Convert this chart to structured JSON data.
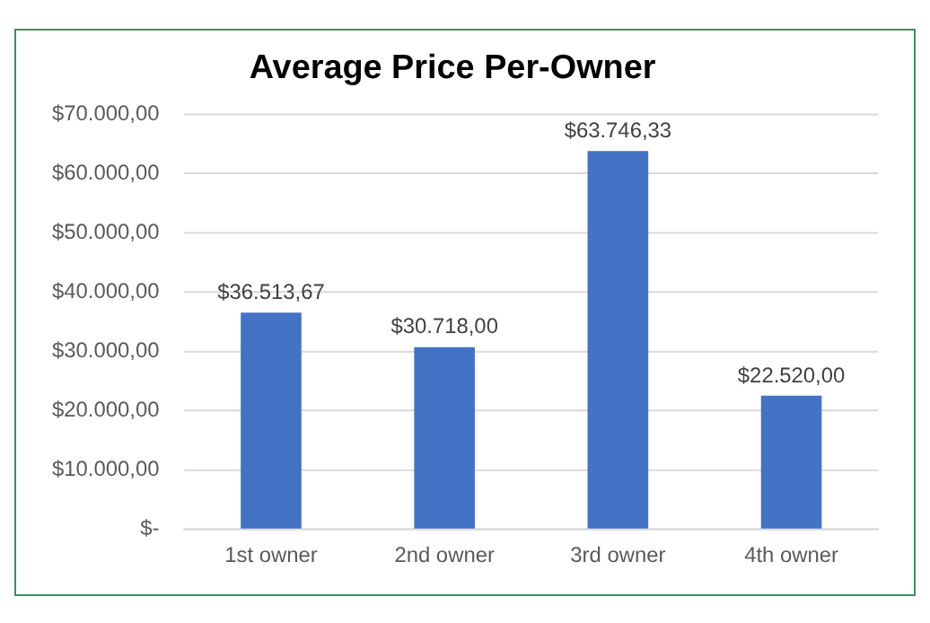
{
  "chart_data": {
    "type": "bar",
    "title": "Average Price Per-Owner",
    "categories": [
      "1st owner",
      "2nd owner",
      "3rd owner",
      "4th owner"
    ],
    "values": [
      36513.67,
      30718.0,
      63746.33,
      22520.0
    ],
    "value_labels": [
      "$36.513,67",
      "$30.718,00",
      "$63.746,33",
      "$22.520,00"
    ],
    "color": "#4472c4",
    "ylim": [
      0,
      70000
    ],
    "yticks": [
      {
        "value": 0,
        "label": "$-"
      },
      {
        "value": 10000,
        "label": "$10.000,00"
      },
      {
        "value": 20000,
        "label": "$20.000,00"
      },
      {
        "value": 30000,
        "label": "$30.000,00"
      },
      {
        "value": 40000,
        "label": "$40.000,00"
      },
      {
        "value": 50000,
        "label": "$50.000,00"
      },
      {
        "value": 60000,
        "label": "$60.000,00"
      },
      {
        "value": 70000,
        "label": "$70.000,00"
      }
    ],
    "grid": "y",
    "legend": false
  }
}
